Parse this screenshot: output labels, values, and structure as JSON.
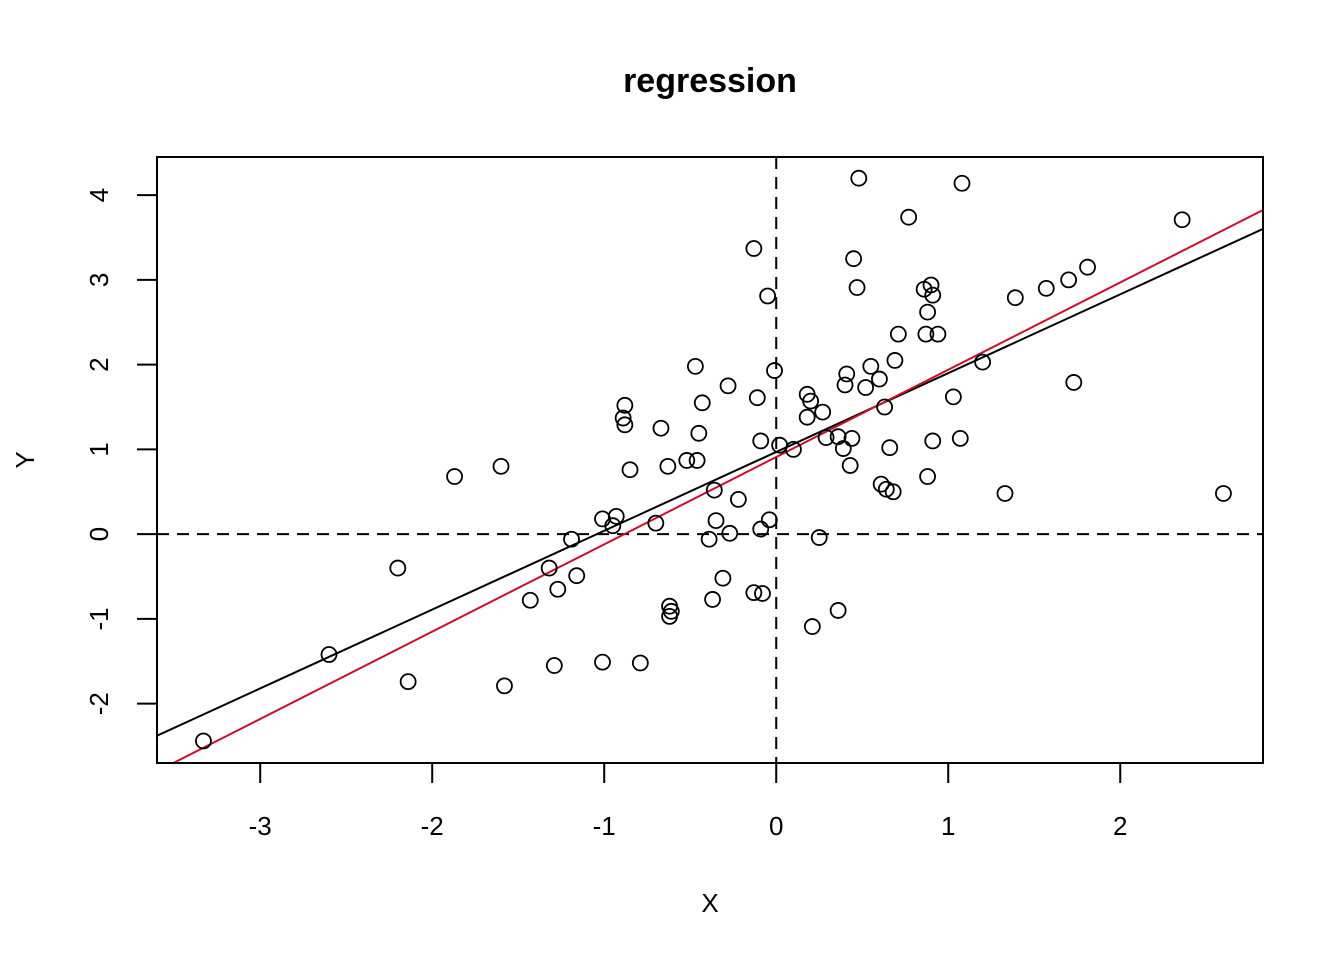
{
  "chart_data": {
    "type": "scatter",
    "title": "regression",
    "xlabel": "X",
    "ylabel": "Y",
    "xlim": [
      -3.6,
      2.83
    ],
    "ylim": [
      -2.7,
      4.45
    ],
    "x_ticks": [
      -3,
      -2,
      -1,
      0,
      1,
      2
    ],
    "x_tick_labels": [
      "-3",
      "-2",
      "-1",
      "0",
      "1",
      "2"
    ],
    "y_ticks": [
      -2,
      -1,
      0,
      1,
      2,
      3,
      4
    ],
    "y_tick_labels": [
      "-2",
      "-1",
      "0",
      "1",
      "2",
      "3",
      "4"
    ],
    "grid": false,
    "reference_lines": [
      {
        "orientation": "horizontal",
        "value": 0,
        "style": "dashed",
        "color": "#000000"
      },
      {
        "orientation": "vertical",
        "value": 0,
        "style": "dashed",
        "color": "#000000"
      }
    ],
    "fit_lines": [
      {
        "intercept": 0.97,
        "slope": 0.93,
        "color": "#000000"
      },
      {
        "intercept": 0.91,
        "slope": 1.03,
        "color": "#c8102e"
      }
    ],
    "points": [
      [
        -3.33,
        -2.44
      ],
      [
        -2.6,
        -1.42
      ],
      [
        -2.2,
        -0.4
      ],
      [
        -2.14,
        -1.74
      ],
      [
        -1.87,
        0.68
      ],
      [
        -1.6,
        0.8
      ],
      [
        -1.58,
        -1.79
      ],
      [
        -1.43,
        -0.78
      ],
      [
        -1.32,
        -0.4
      ],
      [
        -1.29,
        -1.55
      ],
      [
        -1.27,
        -0.65
      ],
      [
        -1.19,
        -0.06
      ],
      [
        -1.16,
        -0.49
      ],
      [
        -1.01,
        0.18
      ],
      [
        -1.01,
        -1.51
      ],
      [
        -0.95,
        0.1
      ],
      [
        -0.93,
        0.21
      ],
      [
        -0.89,
        1.37
      ],
      [
        -0.88,
        1.29
      ],
      [
        -0.88,
        1.52
      ],
      [
        -0.85,
        0.76
      ],
      [
        -0.79,
        -1.52
      ],
      [
        -0.7,
        0.13
      ],
      [
        -0.67,
        1.25
      ],
      [
        -0.63,
        0.8
      ],
      [
        -0.62,
        -0.85
      ],
      [
        -0.62,
        -0.97
      ],
      [
        -0.61,
        -0.91
      ],
      [
        -0.52,
        0.87
      ],
      [
        -0.47,
        1.98
      ],
      [
        -0.46,
        0.87
      ],
      [
        -0.45,
        1.19
      ],
      [
        -0.43,
        1.55
      ],
      [
        -0.39,
        -0.06
      ],
      [
        -0.37,
        -0.77
      ],
      [
        -0.36,
        0.52
      ],
      [
        -0.35,
        0.16
      ],
      [
        -0.31,
        -0.52
      ],
      [
        -0.28,
        1.75
      ],
      [
        -0.27,
        0.01
      ],
      [
        -0.22,
        0.41
      ],
      [
        -0.13,
        -0.69
      ],
      [
        -0.13,
        3.37
      ],
      [
        -0.11,
        1.61
      ],
      [
        -0.09,
        0.06
      ],
      [
        -0.09,
        1.1
      ],
      [
        -0.08,
        -0.7
      ],
      [
        -0.05,
        2.81
      ],
      [
        -0.04,
        0.17
      ],
      [
        -0.01,
        1.93
      ],
      [
        0.02,
        1.05
      ],
      [
        0.1,
        1.0
      ],
      [
        0.18,
        1.65
      ],
      [
        0.18,
        1.38
      ],
      [
        0.2,
        1.57
      ],
      [
        0.21,
        -1.09
      ],
      [
        0.25,
        -0.04
      ],
      [
        0.27,
        1.44
      ],
      [
        0.29,
        1.14
      ],
      [
        0.36,
        1.15
      ],
      [
        0.36,
        -0.9
      ],
      [
        0.39,
        1.01
      ],
      [
        0.4,
        1.76
      ],
      [
        0.41,
        1.89
      ],
      [
        0.43,
        0.81
      ],
      [
        0.44,
        1.13
      ],
      [
        0.45,
        3.25
      ],
      [
        0.47,
        2.91
      ],
      [
        0.48,
        4.2
      ],
      [
        0.52,
        1.73
      ],
      [
        0.55,
        1.98
      ],
      [
        0.6,
        1.83
      ],
      [
        0.61,
        0.59
      ],
      [
        0.63,
        1.5
      ],
      [
        0.64,
        0.53
      ],
      [
        0.66,
        1.02
      ],
      [
        0.68,
        0.5
      ],
      [
        0.69,
        2.05
      ],
      [
        0.71,
        2.36
      ],
      [
        0.77,
        3.74
      ],
      [
        0.86,
        2.89
      ],
      [
        0.87,
        2.36
      ],
      [
        0.88,
        2.62
      ],
      [
        0.88,
        0.68
      ],
      [
        0.9,
        2.94
      ],
      [
        0.91,
        2.82
      ],
      [
        0.91,
        1.1
      ],
      [
        0.94,
        2.36
      ],
      [
        1.03,
        1.62
      ],
      [
        1.07,
        1.13
      ],
      [
        1.08,
        4.14
      ],
      [
        1.2,
        2.03
      ],
      [
        1.33,
        0.48
      ],
      [
        1.39,
        2.79
      ],
      [
        1.57,
        2.9
      ],
      [
        1.7,
        3.0
      ],
      [
        1.73,
        1.79
      ],
      [
        1.81,
        3.15
      ],
      [
        2.36,
        3.71
      ],
      [
        2.6,
        0.48
      ]
    ]
  }
}
